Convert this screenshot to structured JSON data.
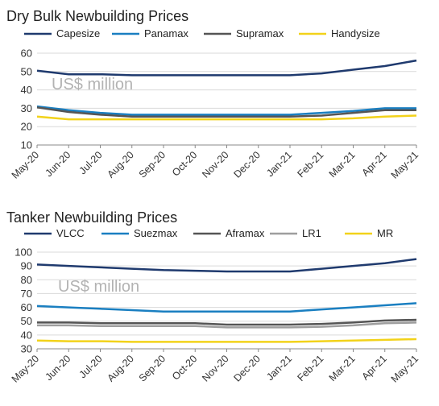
{
  "chart_data": [
    {
      "type": "line",
      "title": "Dry Bulk Newbuilding Prices",
      "unit_label": "US$ million",
      "x": [
        "May-20",
        "Jun-20",
        "Jul-20",
        "Aug-20",
        "Sep-20",
        "Oct-20",
        "Nov-20",
        "Dec-20",
        "Jan-21",
        "Feb-21",
        "Mar-21",
        "Apr-21",
        "May-21"
      ],
      "ylim": [
        10,
        60
      ],
      "yticks": [
        10,
        20,
        30,
        40,
        50,
        60
      ],
      "grid": "horizontal",
      "legend": "top",
      "series": [
        {
          "name": "Capesize",
          "color": "#1f3a6e",
          "values": [
            50.5,
            48.5,
            48.5,
            48.0,
            48.0,
            48.0,
            48.0,
            48.0,
            48.0,
            49.0,
            51.0,
            53.0,
            56.0
          ]
        },
        {
          "name": "Panamax",
          "color": "#1a7fc1",
          "values": [
            31.0,
            29.0,
            27.5,
            26.5,
            26.5,
            26.5,
            26.5,
            26.5,
            26.5,
            27.5,
            28.5,
            30.0,
            30.0
          ]
        },
        {
          "name": "Supramax",
          "color": "#555555",
          "values": [
            30.5,
            28.0,
            26.5,
            25.5,
            25.5,
            25.5,
            25.5,
            25.5,
            25.5,
            26.0,
            27.5,
            29.0,
            29.0
          ]
        },
        {
          "name": "Handysize",
          "color": "#f2d21a",
          "values": [
            25.5,
            24.0,
            24.0,
            24.0,
            24.0,
            24.0,
            24.0,
            24.0,
            24.0,
            24.0,
            24.5,
            25.5,
            26.0
          ]
        }
      ]
    },
    {
      "type": "line",
      "title": "Tanker Newbuilding Prices",
      "unit_label": "US$ million",
      "x": [
        "May-20",
        "Jun-20",
        "Jul-20",
        "Aug-20",
        "Sep-20",
        "Oct-20",
        "Nov-20",
        "Dec-20",
        "Jan-21",
        "Feb-21",
        "Mar-21",
        "Apr-21",
        "May-21"
      ],
      "ylim": [
        30,
        100
      ],
      "yticks": [
        30,
        40,
        50,
        60,
        70,
        80,
        90,
        100
      ],
      "grid": "horizontal",
      "legend": "top",
      "series": [
        {
          "name": "VLCC",
          "color": "#1f3a6e",
          "values": [
            91.0,
            90.0,
            89.0,
            88.0,
            87.0,
            86.5,
            86.0,
            86.0,
            86.0,
            88.0,
            90.0,
            92.0,
            95.0
          ]
        },
        {
          "name": "Suezmax",
          "color": "#1a7fc1",
          "values": [
            61.0,
            60.0,
            59.0,
            58.0,
            57.0,
            57.0,
            57.0,
            57.0,
            57.0,
            58.5,
            60.0,
            61.5,
            63.0
          ]
        },
        {
          "name": "Aframax",
          "color": "#555555",
          "values": [
            49.0,
            49.0,
            48.5,
            48.5,
            48.5,
            48.5,
            47.5,
            47.5,
            47.5,
            48.0,
            49.0,
            50.5,
            51.0
          ]
        },
        {
          "name": "LR1",
          "color": "#9e9e9e",
          "values": [
            47.0,
            47.0,
            46.5,
            46.5,
            46.5,
            46.5,
            45.5,
            45.5,
            45.5,
            46.0,
            47.0,
            48.5,
            49.0
          ]
        },
        {
          "name": "MR",
          "color": "#f2d21a",
          "values": [
            36.0,
            35.5,
            35.5,
            35.0,
            35.0,
            35.0,
            35.0,
            35.0,
            35.0,
            35.5,
            36.0,
            36.5,
            37.0
          ]
        }
      ]
    }
  ]
}
